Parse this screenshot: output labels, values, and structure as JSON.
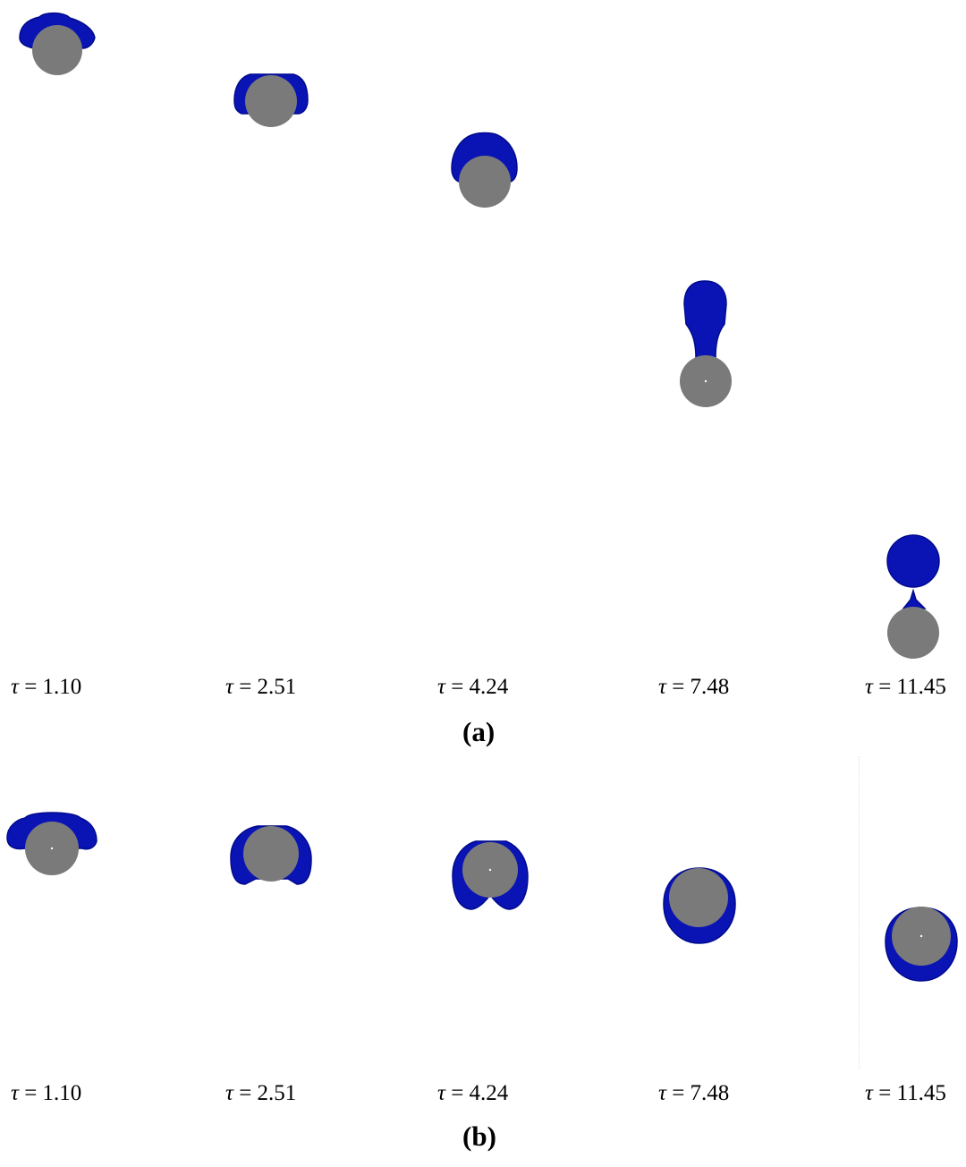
{
  "colors": {
    "fluid": "#0a14b4",
    "fluid_edge": "#000a8c",
    "particle": "#7a7a7a",
    "background": "#ffffff"
  },
  "tau_symbol": "τ",
  "panels": [
    {
      "label": "(a)",
      "taus": [
        "= 1.10",
        "= 2.51",
        "= 4.24",
        "= 7.48",
        "= 11.45"
      ]
    },
    {
      "label": "(b)",
      "taus": [
        "= 1.10",
        "= 2.51",
        "= 4.24",
        "= 7.48",
        "= 11.45"
      ]
    }
  ]
}
